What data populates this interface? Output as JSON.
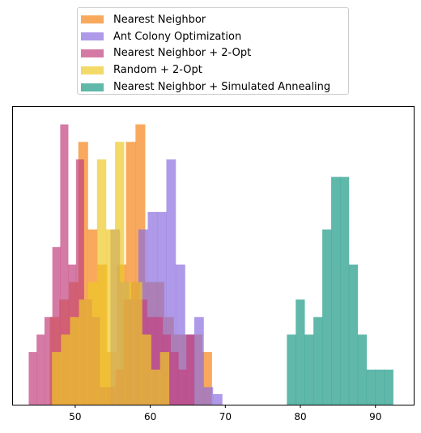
{
  "chart_data": {
    "type": "histogram",
    "title": "",
    "xlabel": "",
    "ylabel": "",
    "xlim": [
      41.7,
      95.1
    ],
    "ylim": [
      0,
      17
    ],
    "y_ticks_shown": false,
    "grid": false,
    "legend_position": "top-center, outside plot",
    "x_ticks": [
      50,
      60,
      70,
      80,
      90
    ],
    "series": [
      {
        "name": "Nearest Neighbor",
        "color": "#f58518",
        "bin_start": 46.6,
        "bin_width": 1.27,
        "counts": [
          5,
          6,
          7,
          15,
          10,
          8,
          3,
          8,
          15,
          16,
          7,
          7,
          5,
          4,
          4,
          4,
          3
        ]
      },
      {
        "name": "Ant Colony Optimization",
        "color": "#8c6fde",
        "bin_start": 54.7,
        "bin_width": 1.24,
        "counts": [
          10,
          7,
          6,
          10,
          11,
          11,
          14,
          8,
          4,
          5,
          1,
          0.6
        ]
      },
      {
        "name": "Nearest Neighbor + 2-Opt",
        "color": "#c2427f",
        "bin_start": 43.8,
        "bin_width": 1.05,
        "counts": [
          3,
          4,
          5,
          9,
          16,
          8,
          14,
          6,
          5,
          1,
          1,
          2,
          6,
          7,
          6,
          5,
          5,
          4,
          3,
          2,
          4
        ]
      },
      {
        "name": "Random + 2-Opt",
        "color": "#eec927",
        "bin_start": 46.9,
        "bin_width": 1.2,
        "counts": [
          3,
          4,
          5,
          6,
          7,
          14,
          10,
          15,
          7,
          7,
          4,
          2,
          3
        ]
      },
      {
        "name": "Nearest Neighbor + Simulated Annealing",
        "color": "#1d9a86",
        "bin_start": 78.2,
        "bin_width": 1.18,
        "counts": [
          4,
          6,
          4,
          5,
          10,
          13,
          13,
          8,
          4,
          2,
          2,
          2
        ]
      }
    ]
  }
}
